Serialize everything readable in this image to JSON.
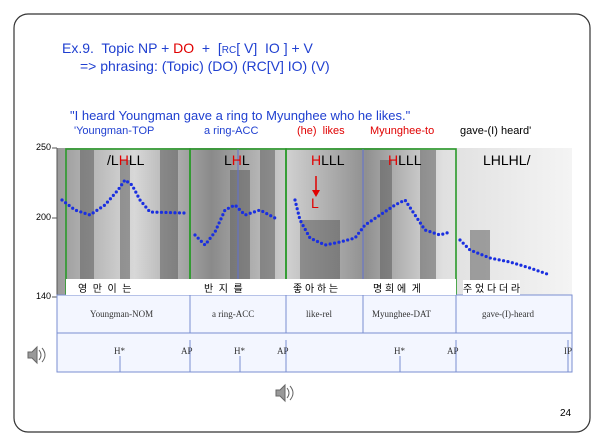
{
  "title": {
    "line1": [
      "Ex.9.  Topic NP + ",
      "DO",
      "  +  [",
      "RC",
      "[ V]  IO ] + V"
    ],
    "line2": "=> phrasing: (Topic) (DO) (RC[V] IO) (V)"
  },
  "sentence": "\"I heard Youngman gave a ring to Myunghee who he likes.\"",
  "gloss": [
    "'Youngman-TOP",
    "a ring-ACC",
    "(he)  likes",
    "Myunghee-to",
    "gave-(I) heard'"
  ],
  "tones": [
    [
      "/L",
      "H",
      "LL"
    ],
    [
      "L",
      "H",
      "L"
    ],
    [
      "H",
      "LLL"
    ],
    [
      "H",
      "LLL"
    ],
    [
      "LHLHL/"
    ]
  ],
  "tone_arrow_label": "L",
  "pitch_axis": [
    "250",
    "200",
    "140"
  ],
  "syllables": [
    "영  만  이  는",
    "반  지  를",
    "좋 아 하 는",
    "명 희 에  게",
    "주 었 다 더 라"
  ],
  "word_tier": [
    "Youngman-NOM",
    "a ring-ACC",
    "like-rel",
    "Myunghee-DAT",
    "gave-(I)-heard"
  ],
  "tone_tier": [
    "H*",
    "AP",
    "H*",
    "AP",
    "H*",
    "AP",
    "IP"
  ],
  "page_number": "24"
}
